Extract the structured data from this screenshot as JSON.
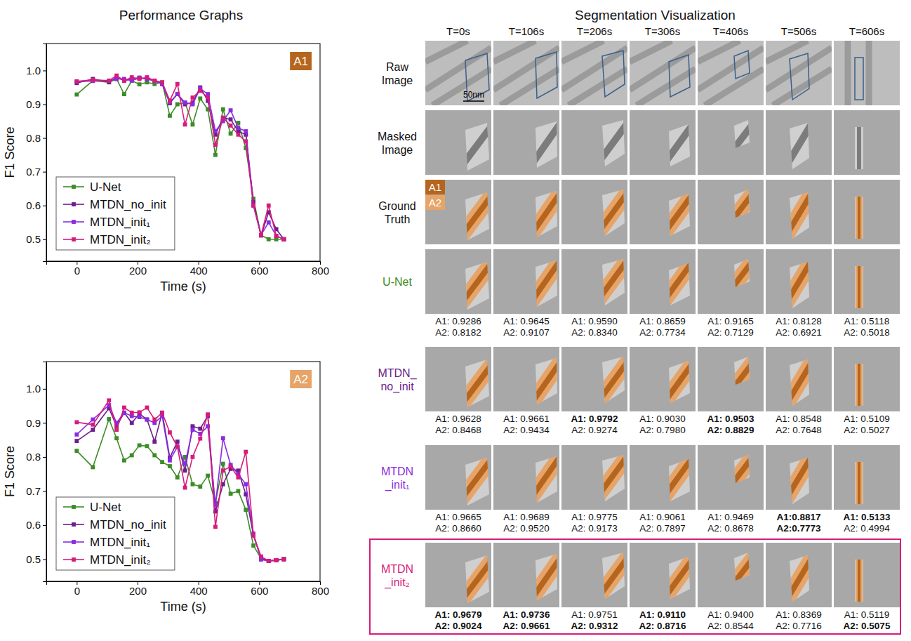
{
  "chart_data": [
    {
      "type": "line",
      "xlabel": "Time (s)",
      "ylabel": "F1 Score",
      "annotations": [
        {
          "text": "A1",
          "color": "#b5651d"
        }
      ],
      "x": [
        0,
        53,
        106,
        131,
        156,
        181,
        206,
        231,
        256,
        281,
        306,
        331,
        356,
        381,
        406,
        431,
        456,
        481,
        506,
        531,
        556,
        581,
        606,
        631,
        656,
        681
      ],
      "series": [
        {
          "name": "U-Net",
          "color": "#3c8c28",
          "values": [
            0.929,
            0.97,
            0.965,
            0.975,
            0.93,
            0.97,
            0.959,
            0.965,
            0.96,
            0.965,
            0.866,
            0.9,
            0.905,
            0.84,
            0.917,
            0.885,
            0.75,
            0.885,
            0.813,
            0.845,
            0.77,
            0.62,
            0.512,
            0.5,
            0.5,
            0.5
          ]
        },
        {
          "name": "MTDN_no_init",
          "color": "#6b1f8c",
          "values": [
            0.963,
            0.975,
            0.966,
            0.98,
            0.97,
            0.975,
            0.979,
            0.975,
            0.97,
            0.96,
            0.903,
            0.93,
            0.9,
            0.905,
            0.95,
            0.91,
            0.81,
            0.86,
            0.855,
            0.82,
            0.81,
            0.61,
            0.511,
            0.58,
            0.53,
            0.5
          ]
        },
        {
          "name": "MTDN_init₁",
          "color": "#8a2be2",
          "values": [
            0.967,
            0.969,
            0.97,
            0.975,
            0.975,
            0.97,
            0.978,
            0.975,
            0.97,
            0.96,
            0.906,
            0.93,
            0.905,
            0.9,
            0.947,
            0.93,
            0.82,
            0.85,
            0.882,
            0.83,
            0.82,
            0.6,
            0.513,
            0.55,
            0.51,
            0.5
          ]
        },
        {
          "name": "MTDN_init₂",
          "color": "#d81b7a",
          "values": [
            0.968,
            0.972,
            0.97,
            0.985,
            0.97,
            0.98,
            0.975,
            0.98,
            0.97,
            0.965,
            0.911,
            0.96,
            0.84,
            0.92,
            0.94,
            0.92,
            0.78,
            0.86,
            0.837,
            0.81,
            0.79,
            0.6,
            0.512,
            0.6,
            0.51,
            0.5
          ]
        }
      ],
      "xlim": [
        -100,
        800
      ],
      "xticks": [
        0,
        200,
        400,
        600,
        800
      ],
      "ylim": [
        0.435,
        1.08
      ],
      "yticks": [
        0.5,
        0.6,
        0.7,
        0.8,
        0.9,
        {
          "value": 1,
          "label": "1.0"
        }
      ],
      "grid": false,
      "legend": "lower left",
      "marker": "square"
    },
    {
      "type": "line",
      "xlabel": "Time (s)",
      "ylabel": "F1 Score",
      "annotations": [
        {
          "text": "A2",
          "color": "#e6a468"
        }
      ],
      "x": [
        0,
        53,
        106,
        131,
        156,
        181,
        206,
        231,
        256,
        281,
        306,
        331,
        356,
        381,
        406,
        431,
        456,
        481,
        506,
        531,
        556,
        581,
        606,
        631,
        656,
        681
      ],
      "series": [
        {
          "name": "U-Net",
          "color": "#3c8c28",
          "values": [
            0.818,
            0.77,
            0.911,
            0.855,
            0.79,
            0.805,
            0.834,
            0.832,
            0.805,
            0.785,
            0.773,
            0.74,
            0.8,
            0.72,
            0.713,
            0.745,
            0.665,
            0.78,
            0.692,
            0.7,
            0.645,
            0.54,
            0.502,
            0.495,
            0.497,
            0.5
          ]
        },
        {
          "name": "MTDN_no_init",
          "color": "#6b1f8c",
          "values": [
            0.847,
            0.88,
            0.943,
            0.89,
            0.93,
            0.9,
            0.927,
            0.91,
            0.845,
            0.93,
            0.798,
            0.845,
            0.76,
            0.89,
            0.883,
            0.92,
            0.64,
            0.72,
            0.765,
            0.76,
            0.69,
            0.57,
            0.503,
            0.495,
            0.497,
            0.5
          ]
        },
        {
          "name": "MTDN_init₁",
          "color": "#8a2be2",
          "values": [
            0.866,
            0.91,
            0.952,
            0.9,
            0.93,
            0.92,
            0.917,
            0.91,
            0.9,
            0.92,
            0.79,
            0.83,
            0.78,
            0.88,
            0.868,
            0.89,
            0.66,
            0.855,
            0.777,
            0.75,
            0.72,
            0.575,
            0.499,
            0.495,
            0.497,
            0.5
          ]
        },
        {
          "name": "MTDN_init₂",
          "color": "#d81b7a",
          "values": [
            0.902,
            0.895,
            0.966,
            0.88,
            0.945,
            0.93,
            0.931,
            0.945,
            0.91,
            0.93,
            0.872,
            0.83,
            0.71,
            0.8,
            0.854,
            0.925,
            0.595,
            0.76,
            0.772,
            0.74,
            0.815,
            0.57,
            0.508,
            0.495,
            0.497,
            0.5
          ]
        }
      ],
      "xlim": [
        -100,
        800
      ],
      "xticks": [
        0,
        200,
        400,
        600,
        800
      ],
      "ylim": [
        0.435,
        1.08
      ],
      "yticks": [
        0.5,
        0.6,
        0.7,
        0.8,
        0.9,
        {
          "value": 1,
          "label": "1.0"
        }
      ],
      "grid": false,
      "legend": "lower left",
      "marker": "square"
    }
  ],
  "figure": {
    "left_title": "Performance Graphs",
    "right_title": "Segmentation Visualization",
    "scale_bar": "50nm",
    "mask_legend": [
      {
        "text": "A1",
        "color": "#b5651d"
      },
      {
        "text": "A2",
        "color": "#e6a468"
      }
    ],
    "columns": [
      "T=0s",
      "T=106s",
      "T=206s",
      "T=306s",
      "T=406s",
      "T=506s",
      "T=606s"
    ],
    "rows": [
      {
        "label": [
          "Raw",
          "Image"
        ]
      },
      {
        "label": [
          "Masked",
          "Image"
        ]
      },
      {
        "label": [
          "Ground",
          "Truth"
        ]
      },
      {
        "label": [
          "U-Net"
        ],
        "color": "#3c8c28",
        "scores": [
          {
            "A1": "A1: 0.9286",
            "A2": "A2: 0.8182",
            "bold": [
              false,
              false
            ]
          },
          {
            "A1": "A1: 0.9645",
            "A2": "A2: 0.9107",
            "bold": [
              false,
              false
            ]
          },
          {
            "A1": "A1: 0.9590",
            "A2": "A2: 0.8340",
            "bold": [
              false,
              false
            ]
          },
          {
            "A1": "A1: 0.8659",
            "A2": "A2: 0.7734",
            "bold": [
              false,
              false
            ]
          },
          {
            "A1": "A1: 0.9165",
            "A2": "A2: 0.7129",
            "bold": [
              false,
              false
            ]
          },
          {
            "A1": "A1: 0.8128",
            "A2": "A2: 0.6921",
            "bold": [
              false,
              false
            ]
          },
          {
            "A1": "A1: 0.5118",
            "A2": "A2: 0.5018",
            "bold": [
              false,
              false
            ]
          }
        ]
      },
      {
        "label": [
          "MTDN_",
          "no_init"
        ],
        "color": "#6b1f8c",
        "scores": [
          {
            "A1": "A1: 0.9628",
            "A2": "A2: 0.8468",
            "bold": [
              false,
              false
            ]
          },
          {
            "A1": "A1: 0.9661",
            "A2": "A2: 0.9434",
            "bold": [
              false,
              false
            ]
          },
          {
            "A1": "A1: 0.9792",
            "A2": "A2: 0.9274",
            "bold": [
              true,
              false
            ]
          },
          {
            "A1": "A1: 0.9030",
            "A2": "A2: 0.7980",
            "bold": [
              false,
              false
            ]
          },
          {
            "A1": "A1: 0.9503",
            "A2": "A2: 0.8829",
            "bold": [
              true,
              true
            ]
          },
          {
            "A1": "A1: 0.8548",
            "A2": "A2: 0.7648",
            "bold": [
              false,
              false
            ]
          },
          {
            "A1": "A1: 0.5109",
            "A2": "A2: 0.5027",
            "bold": [
              false,
              false
            ]
          }
        ]
      },
      {
        "label": [
          "MTDN",
          "_init₁"
        ],
        "color": "#8a2be2",
        "scores": [
          {
            "A1": "A1: 0.9665",
            "A2": "A2: 0.8660",
            "bold": [
              false,
              false
            ]
          },
          {
            "A1": "A1: 0.9689",
            "A2": "A2: 0.9520",
            "bold": [
              false,
              false
            ]
          },
          {
            "A1": "A1: 0.9775",
            "A2": "A2: 0.9173",
            "bold": [
              false,
              false
            ]
          },
          {
            "A1": "A1: 0.9061",
            "A2": "A2: 0.7897",
            "bold": [
              false,
              false
            ]
          },
          {
            "A1": "A1: 0.9469",
            "A2": "A2: 0.8678",
            "bold": [
              false,
              false
            ]
          },
          {
            "A1": "A1:0.8817",
            "A2": "A2:0.7773",
            "bold": [
              true,
              true
            ]
          },
          {
            "A1": "A1: 0.5133",
            "A2": "A2: 0.4994",
            "bold": [
              true,
              false
            ]
          }
        ]
      },
      {
        "label": [
          "MTDN",
          "_init₂"
        ],
        "color": "#d81b7a",
        "highlight": true,
        "scores": [
          {
            "A1": "A1: 0.9679",
            "A2": "A2: 0.9024",
            "bold": [
              true,
              true
            ]
          },
          {
            "A1": "A1: 0.9736",
            "A2": "A2: 0.9661",
            "bold": [
              true,
              true
            ]
          },
          {
            "A1": "A1: 0.9751",
            "A2": "A2: 0.9312",
            "bold": [
              false,
              true
            ]
          },
          {
            "A1": "A1: 0.9110",
            "A2": "A2: 0.8716",
            "bold": [
              true,
              true
            ]
          },
          {
            "A1": "A1: 0.9400",
            "A2": "A2: 0.8544",
            "bold": [
              false,
              false
            ]
          },
          {
            "A1": "A1: 0.8369",
            "A2": "A2: 0.7716",
            "bold": [
              false,
              false
            ]
          },
          {
            "A1": "A1: 0.5119",
            "A2": "A2: 0.5075",
            "bold": [
              false,
              true
            ]
          }
        ]
      }
    ]
  }
}
